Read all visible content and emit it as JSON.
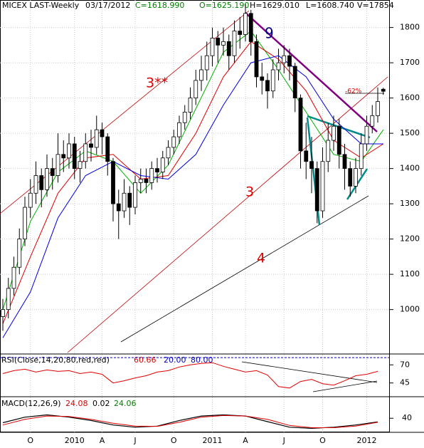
{
  "chart_data": {
    "type": "candlestick",
    "header": {
      "symbol": "MICEX LAST-Weekly",
      "date": "03/17/2012",
      "close": "C=1618.990",
      "open": "O=1625.190",
      "high": "H=1629.010",
      "low": "L=1608.740",
      "volume": "V=17854"
    },
    "categories": [
      null,
      null,
      null,
      null,
      null,
      "O",
      null,
      null,
      null,
      null,
      null,
      null,
      null,
      "2010",
      null,
      null,
      null,
      null,
      "A",
      null,
      null,
      null,
      null,
      null,
      "J",
      null,
      null,
      null,
      null,
      null,
      null,
      "O",
      null,
      null,
      null,
      null,
      null,
      null,
      "2011",
      null,
      null,
      null,
      null,
      null,
      "A",
      null,
      null,
      null,
      null,
      null,
      null,
      "J",
      null,
      null,
      null,
      null,
      null,
      null,
      "O",
      null,
      null,
      null,
      null,
      null,
      null,
      null,
      "2012",
      null,
      null,
      null
    ],
    "open": [
      980,
      1000,
      1060,
      1120,
      1200,
      1290,
      1330,
      1380,
      1340,
      1400,
      1380,
      1440,
      1430,
      1470,
      1400,
      1420,
      1470,
      1460,
      1510,
      1490,
      1420,
      1300,
      1280,
      1330,
      1290,
      1360,
      1370,
      1360,
      1400,
      1390,
      1430,
      1460,
      1490,
      1530,
      1560,
      1600,
      1650,
      1680,
      1720,
      1770,
      1750,
      1760,
      1720,
      1790,
      1780,
      1840,
      1760,
      1660,
      1650,
      1620,
      1680,
      1700,
      1720,
      1690,
      1600,
      1450,
      1420,
      1400,
      1280,
      1420,
      1480,
      1520,
      1440,
      1400,
      1350,
      1400,
      1470,
      1520,
      1550,
      1625
    ],
    "high": [
      1030,
      1090,
      1150,
      1230,
      1320,
      1370,
      1420,
      1400,
      1440,
      1430,
      1500,
      1480,
      1500,
      1490,
      1450,
      1500,
      1510,
      1550,
      1530,
      1500,
      1430,
      1340,
      1370,
      1350,
      1380,
      1400,
      1400,
      1420,
      1430,
      1450,
      1480,
      1510,
      1550,
      1580,
      1630,
      1680,
      1720,
      1760,
      1800,
      1790,
      1800,
      1780,
      1820,
      1830,
      1866,
      1850,
      1780,
      1700,
      1670,
      1710,
      1740,
      1750,
      1740,
      1700,
      1610,
      1530,
      1490,
      1420,
      1460,
      1530,
      1550,
      1540,
      1470,
      1420,
      1430,
      1500,
      1550,
      1580,
      1630,
      1629
    ],
    "low": [
      940,
      975,
      1040,
      1100,
      1180,
      1260,
      1300,
      1290,
      1320,
      1340,
      1360,
      1390,
      1400,
      1370,
      1360,
      1400,
      1420,
      1440,
      1440,
      1380,
      1250,
      1200,
      1260,
      1240,
      1270,
      1330,
      1330,
      1340,
      1360,
      1370,
      1410,
      1440,
      1470,
      1510,
      1540,
      1580,
      1620,
      1650,
      1690,
      1700,
      1720,
      1680,
      1700,
      1740,
      1760,
      1720,
      1630,
      1610,
      1570,
      1600,
      1650,
      1670,
      1650,
      1560,
      1400,
      1370,
      1330,
      1245,
      1260,
      1390,
      1450,
      1400,
      1340,
      1320,
      1330,
      1380,
      1450,
      1500,
      1530,
      1609
    ],
    "close": [
      1000,
      1060,
      1120,
      1200,
      1290,
      1330,
      1380,
      1340,
      1400,
      1380,
      1440,
      1430,
      1470,
      1400,
      1420,
      1470,
      1460,
      1510,
      1490,
      1420,
      1300,
      1280,
      1330,
      1290,
      1360,
      1370,
      1360,
      1400,
      1390,
      1430,
      1460,
      1490,
      1530,
      1560,
      1600,
      1650,
      1680,
      1720,
      1770,
      1750,
      1760,
      1720,
      1790,
      1780,
      1840,
      1760,
      1660,
      1650,
      1620,
      1680,
      1700,
      1720,
      1690,
      1600,
      1450,
      1420,
      1400,
      1280,
      1420,
      1480,
      1520,
      1440,
      1400,
      1350,
      1400,
      1470,
      1520,
      1550,
      1590,
      1619
    ],
    "ylim": [
      874,
      1878
    ],
    "yticks": [
      1000,
      1100,
      1200,
      1300,
      1400,
      1500,
      1600,
      1700,
      1800
    ],
    "overlays": [
      {
        "color": "#00b000",
        "x": [
          0,
          5,
          10,
          15,
          20,
          25,
          30,
          35,
          40,
          45,
          50,
          55,
          60,
          65,
          69
        ],
        "values": [
          1000,
          1250,
          1390,
          1450,
          1420,
          1330,
          1410,
          1570,
          1730,
          1790,
          1680,
          1560,
          1440,
          1420,
          1510
        ]
      },
      {
        "color": "#e00000",
        "x": [
          0,
          5,
          10,
          15,
          20,
          25,
          30,
          35,
          40,
          45,
          50,
          55,
          60,
          65,
          69
        ],
        "values": [
          960,
          1150,
          1330,
          1430,
          1440,
          1370,
          1380,
          1500,
          1660,
          1760,
          1710,
          1620,
          1480,
          1430,
          1470
        ]
      },
      {
        "color": "#0000e0",
        "x": [
          0,
          5,
          10,
          15,
          20,
          25,
          30,
          35,
          40,
          45,
          50,
          55,
          60,
          65,
          69
        ],
        "values": [
          920,
          1050,
          1260,
          1380,
          1420,
          1380,
          1370,
          1440,
          1580,
          1700,
          1720,
          1660,
          1540,
          1470,
          1470
        ]
      }
    ],
    "annotations": {
      "channel_top": "3**",
      "channel": "3",
      "support": "4",
      "downtrend": "9",
      "retracement": "-62%"
    },
    "rsi": {
      "title": "RSI(Close,14,20,80,red,red)",
      "value": "60.66",
      "low": "20.00",
      "high": "80.00",
      "color": "#e00000",
      "x": [
        0,
        2,
        4,
        6,
        8,
        10,
        12,
        14,
        16,
        18,
        20,
        22,
        24,
        26,
        28,
        30,
        32,
        34,
        36,
        38,
        40,
        42,
        44,
        46,
        48,
        50,
        52,
        54,
        56,
        58,
        60,
        62,
        64,
        66,
        68
      ],
      "values": [
        58,
        62,
        64,
        60,
        63,
        61,
        62,
        58,
        60,
        57,
        45,
        48,
        52,
        55,
        60,
        62,
        67,
        70,
        72,
        73,
        68,
        64,
        60,
        62,
        56,
        40,
        38,
        47,
        50,
        44,
        42,
        48,
        55,
        57,
        61
      ],
      "ylim": [
        26,
        85
      ],
      "yticks": [
        45,
        70
      ],
      "level": 80
    },
    "macd": {
      "title": "MACD(12,26,9)",
      "macd_value": "24.08",
      "hist_value": "0.02",
      "signal_value": "24.06",
      "x": [
        0,
        4,
        8,
        12,
        16,
        20,
        24,
        28,
        32,
        36,
        40,
        44,
        48,
        52,
        56,
        60,
        64,
        68
      ],
      "macd": [
        20,
        45,
        55,
        45,
        30,
        10,
        0,
        5,
        30,
        50,
        55,
        50,
        25,
        0,
        -5,
        0,
        10,
        24
      ],
      "signal": [
        10,
        35,
        50,
        48,
        35,
        18,
        5,
        4,
        22,
        45,
        52,
        50,
        35,
        8,
        -2,
        -2,
        5,
        22
      ],
      "ylim": [
        -10,
        120
      ],
      "yticks": [
        40
      ]
    }
  }
}
